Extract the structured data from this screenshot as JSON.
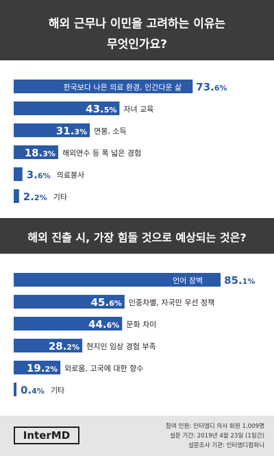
{
  "colors": {
    "header_bg": "#3c3c3c",
    "bar": "#2a5aa8",
    "footer_bg": "#e5e5e5"
  },
  "section1": {
    "title_line1": "해외 근무나 이민을 고려하는 이유는",
    "title_line2": "무엇인가요?"
  },
  "section2": {
    "title": "해외 진출 시, 가장 힘들 것으로 예상되는 것은?"
  },
  "chart_data": [
    {
      "type": "bar",
      "orientation": "horizontal",
      "categories": [
        "한국보다 나은 의료 환경, 인간다운 삶",
        "자녀 교육",
        "연봉, 소득",
        "해외연수 등 폭 넓은 경험",
        "의료봉사",
        "기타"
      ],
      "values": [
        73.6,
        43.5,
        31.3,
        18.3,
        3.6,
        2.2
      ],
      "unit": "%"
    },
    {
      "type": "bar",
      "orientation": "horizontal",
      "categories": [
        "언어 장벽",
        "인종차별, 자국민 우선 정책",
        "문화 차이",
        "현지인 임상 경험 부족",
        "외로움, 고국에 대한 향수",
        "기타"
      ],
      "values": [
        85.1,
        45.6,
        44.6,
        28.2,
        19.2,
        0.4
      ],
      "unit": "%"
    }
  ],
  "footer": {
    "logo": "InterMD",
    "line1": "참여 인원: 인터엠디 의사 회원 1,009명",
    "line2": "설문 기간: 2019년 4월 23일 (1일간)",
    "line3": "설문조사 기관: 인터엠디컴퍼니"
  }
}
